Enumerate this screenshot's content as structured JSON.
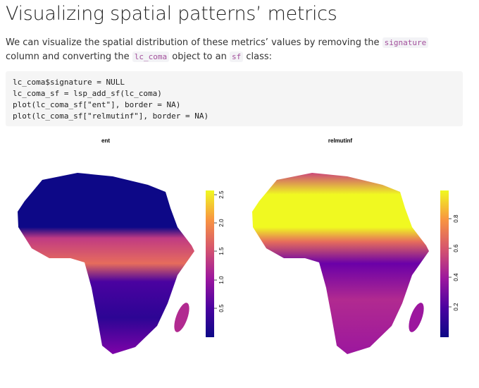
{
  "heading": "Visualizing spatial patterns’ metrics",
  "paragraph": [
    "We can visualize the spatial distribution of these metrics’ values by removing the ",
    "signature",
    " column and converting the ",
    "lc_coma",
    " object to an ",
    "sf",
    " class:"
  ],
  "code": [
    "lc_coma$signature = NULL",
    "lc_coma_sf = lsp_add_sf(lc_coma)",
    "plot(lc_coma_sf[\"ent\"], border = NA)",
    "plot(lc_coma_sf[\"relmutinf\"], border = NA)"
  ],
  "figures": [
    {
      "title": "ent",
      "legend_ticks": [
        "0.5",
        "1.0",
        "1.5",
        "2.0",
        "2.5"
      ]
    },
    {
      "title": "relmutinf",
      "legend_ticks": [
        "0.2",
        "0.4",
        "0.6",
        "0.8"
      ]
    }
  ]
}
